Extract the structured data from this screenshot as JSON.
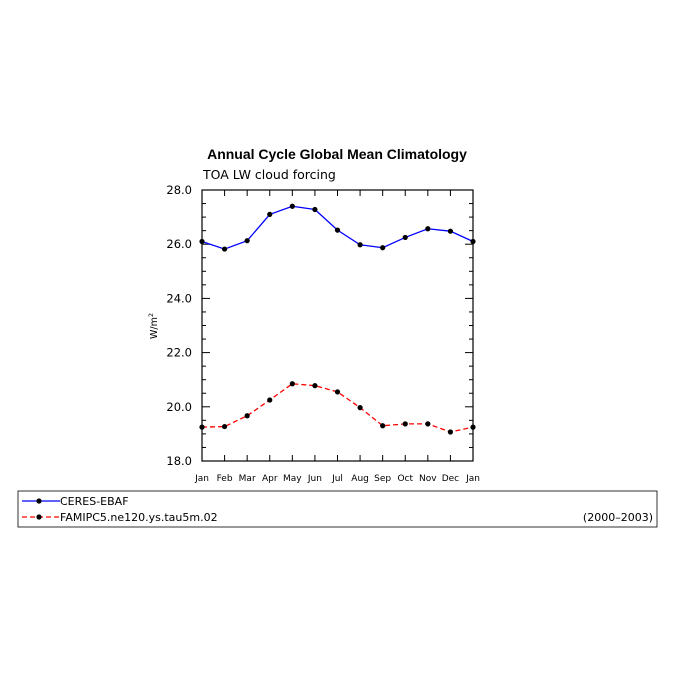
{
  "chart_data": {
    "type": "line",
    "title": "Annual Cycle Global Mean Climatology",
    "subtitle": "TOA LW cloud forcing",
    "ylabel": "W/m",
    "ylabel_sup": "2",
    "xlabel": "",
    "categories": [
      "Jan",
      "Feb",
      "Mar",
      "Apr",
      "May",
      "Jun",
      "Jul",
      "Aug",
      "Sep",
      "Oct",
      "Nov",
      "Dec",
      "Jan"
    ],
    "ylim": [
      18.0,
      28.0
    ],
    "yticks": [
      "18.0",
      "20.0",
      "22.0",
      "24.0",
      "26.0",
      "28.0"
    ],
    "series": [
      {
        "name": "CERES-EBAF",
        "color": "#0000ff",
        "dash": "solid",
        "values": [
          26.1,
          25.82,
          26.13,
          27.1,
          27.4,
          27.28,
          26.52,
          25.98,
          25.87,
          26.25,
          26.57,
          26.48,
          26.1
        ]
      },
      {
        "name": "FAMIPC5.ne120.ys.tau5m.02",
        "color": "#ff0000",
        "dash": "dashed",
        "values": [
          19.25,
          19.27,
          19.67,
          20.25,
          20.85,
          20.78,
          20.55,
          19.97,
          19.3,
          19.37,
          19.37,
          19.07,
          19.25
        ]
      }
    ],
    "legend_note": "(2000–2003)",
    "marker_color": "#000000",
    "grid": false,
    "legend_position": "bottom"
  }
}
